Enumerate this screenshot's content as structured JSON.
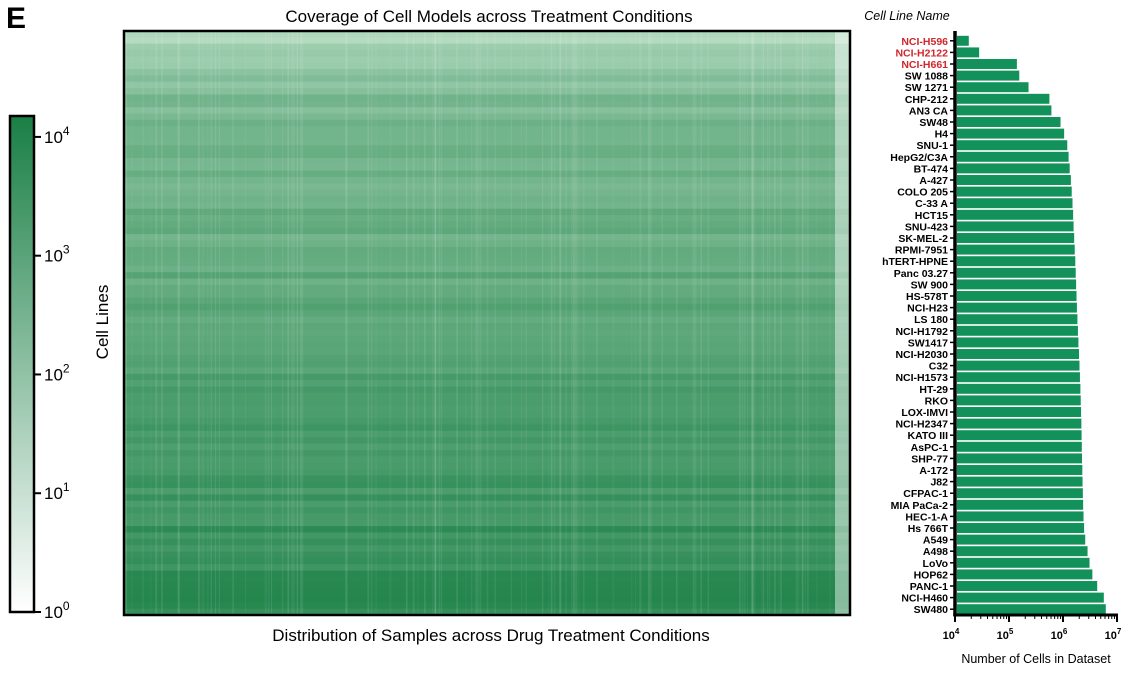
{
  "panel_label": "E",
  "chart_data": [
    {
      "type": "heatmap",
      "title": "Coverage of Cell Models across Treatment Conditions",
      "xlabel": "Distribution of Samples across Drug Treatment Conditions",
      "ylabel": "Cell Lines",
      "colorbar": {
        "scale": "log",
        "range": [
          1,
          15000
        ],
        "ticks": [
          1,
          10,
          100,
          1000,
          10000
        ],
        "tick_base": "10",
        "tick_exponents": [
          "0",
          "1",
          "2",
          "3",
          "4"
        ],
        "color_low": "#ffffff",
        "color_high": "#1a7f45"
      },
      "colors": {
        "cell_base": "#3f9a63",
        "cell_light": "#dcefe2"
      }
    },
    {
      "type": "bar",
      "orientation": "horizontal",
      "category_header": "Cell Line Name",
      "xlabel": "Number of Cells in Dataset",
      "xscale": "log",
      "xlim": [
        10000,
        10000000
      ],
      "x_tick_base": "10",
      "x_tick_exponents": [
        "4",
        "5",
        "6",
        "7"
      ],
      "bar_color": "#12925a",
      "highlight_color": "#d0262d",
      "highlighted": [
        "NCI-H596",
        "NCI-H2122",
        "NCI-H661"
      ],
      "categories": [
        "NCI-H596",
        "NCI-H2122",
        "NCI-H661",
        "SW 1088",
        "SW 1271",
        "CHP-212",
        "AN3 CA",
        "SW48",
        "H4",
        "SNU-1",
        "HepG2/C3A",
        "BT-474",
        "A-427",
        "COLO 205",
        "C-33 A",
        "HCT15",
        "SNU-423",
        "SK-MEL-2",
        "RPMI-7951",
        "hTERT-HPNE",
        "Panc 03.27",
        "SW 900",
        "HS-578T",
        "NCI-H23",
        "LS 180",
        "NCI-H1792",
        "SW1417",
        "NCI-H2030",
        "C32",
        "NCI-H1573",
        "HT-29",
        "RKO",
        "LOX-IMVI",
        "NCI-H2347",
        "KATO III",
        "AsPC-1",
        "SHP-77",
        "A-172",
        "J82",
        "CFPAC-1",
        "MIA PaCa-2",
        "HEC-1-A",
        "Hs 766T",
        "A549",
        "A498",
        "LoVo",
        "HOP62",
        "PANC-1",
        "NCI-H460",
        "SW480"
      ],
      "values": [
        18000,
        28000,
        140000,
        155000,
        230000,
        560000,
        610000,
        900000,
        1050000,
        1200000,
        1270000,
        1330000,
        1400000,
        1450000,
        1500000,
        1540000,
        1570000,
        1610000,
        1650000,
        1690000,
        1720000,
        1750000,
        1780000,
        1810000,
        1850000,
        1890000,
        1930000,
        1980000,
        2020000,
        2060000,
        2100000,
        2130000,
        2160000,
        2190000,
        2210000,
        2230000,
        2250000,
        2280000,
        2300000,
        2330000,
        2360000,
        2400000,
        2460000,
        2580000,
        2850000,
        3100000,
        3500000,
        4300000,
        5700000,
        6200000
      ]
    }
  ]
}
